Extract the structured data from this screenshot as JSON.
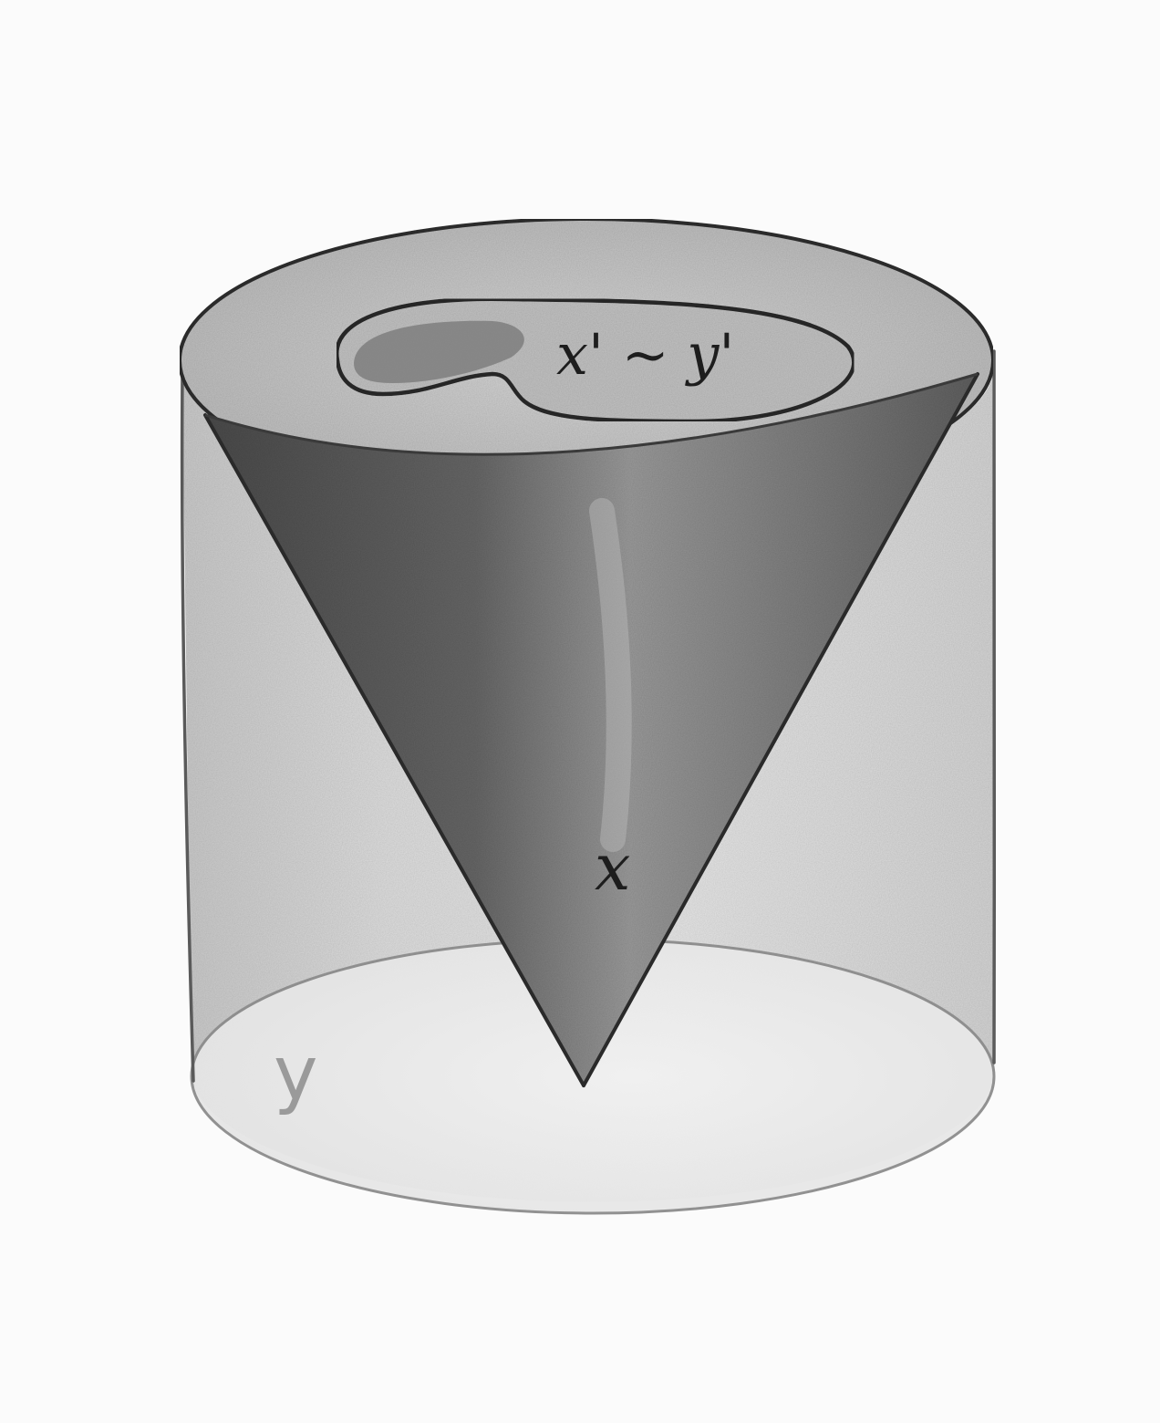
{
  "diagram": {
    "labels": {
      "region_label": "x' ~ y'",
      "cone_label": "x",
      "cylinder_label": "y"
    },
    "colors": {
      "paper": "#fbfbfb",
      "pencil_dark": "#2a2a2a",
      "pencil_mid": "#6e6e6e",
      "pencil_light": "#cfcfcf",
      "cone_shade": "#707070",
      "top_face": "#c9c9c9",
      "region_fill": "#6a6a6a"
    }
  }
}
